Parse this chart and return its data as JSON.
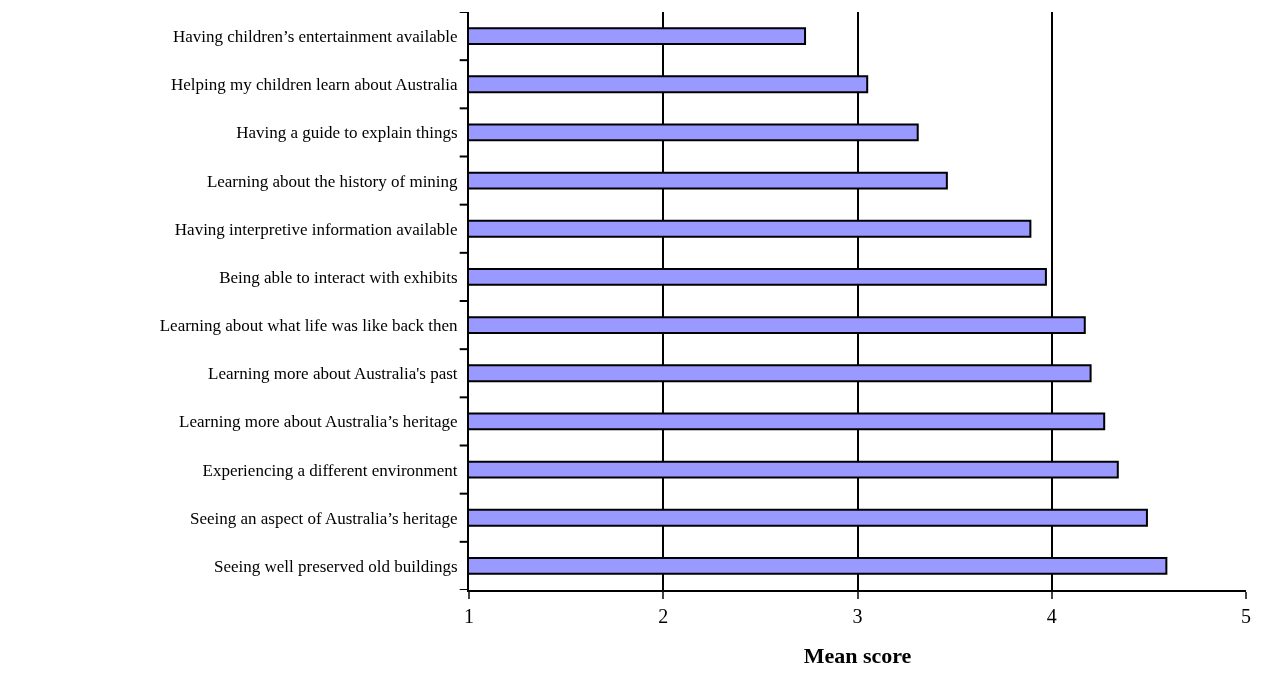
{
  "chart_data": {
    "type": "bar",
    "orientation": "horizontal",
    "xlabel": "Mean score",
    "categories": [
      "Having children’s entertainment available",
      "Helping my children learn about Australia",
      "Having a guide to explain things",
      "Learning about the history of mining",
      "Having interpretive information available",
      "Being able to interact with exhibits",
      "Learning about what life was like back then",
      "Learning more about Australia's past",
      "Learning more about Australia’s heritage",
      "Experiencing a different environment",
      "Seeing an aspect of Australia’s heritage",
      "Seeing well preserved old buildings"
    ],
    "values": [
      2.73,
      3.05,
      3.31,
      3.46,
      3.89,
      3.97,
      4.17,
      4.2,
      4.27,
      4.34,
      4.49,
      4.59
    ],
    "color": "#9999ff",
    "xlim": [
      1,
      5
    ],
    "xticks": [
      1,
      2,
      3,
      4,
      5
    ],
    "grid": "x"
  }
}
